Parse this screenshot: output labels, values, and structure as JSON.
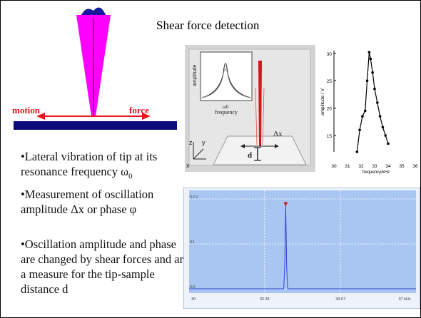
{
  "slide": {
    "title": "Shear force detection",
    "bullets": [
      {
        "pre": "•Lateral vibration of tip at its resonance frequency ω",
        "sub": "0"
      },
      {
        "pre": "•Measurement of oscillation amplitude Δx or phase φ",
        "sub": ""
      },
      {
        "pre": "•Oscillation amplitude and  phase are changed  by shear forces and are a measure for the tip-sample distance d",
        "sub": ""
      }
    ]
  },
  "tip_diagram": {
    "motion_label": "motion",
    "force_label": "force",
    "colors": {
      "tip": "#ff00ff",
      "tip_top": "#1a1aa0",
      "arrow": "#e8141e",
      "substrate": "#0a0a78"
    }
  },
  "schematic": {
    "inset_ylabel": "amplitude",
    "inset_xlabel_top": "ω0",
    "inset_xlabel": "frequency",
    "dx_label": "Δx",
    "d_label": "d",
    "axis_x": "x",
    "axis_y": "y",
    "axis_z": "z"
  },
  "chart_data": [
    {
      "type": "line",
      "xlabel": "frequency/kHz",
      "ylabel": "amplitude / V",
      "xlim": [
        30,
        36
      ],
      "ylim": [
        12,
        30.5
      ],
      "x_ticks": [
        "30",
        "31",
        "32",
        "33",
        "34",
        "35",
        "36"
      ],
      "y_ticks": [
        "30",
        "25",
        "20",
        "15"
      ],
      "series": [
        {
          "x": [
            31.7,
            31.9,
            32.1,
            32.3,
            32.45,
            32.6,
            32.7,
            32.85,
            33.0,
            33.2,
            33.4,
            33.6,
            33.8,
            34.0
          ],
          "y": [
            12.0,
            16.0,
            18.5,
            19.5,
            25.0,
            30.2,
            29.0,
            26.5,
            23.5,
            21.0,
            18.5,
            16.5,
            15.0,
            13.5
          ]
        }
      ]
    },
    {
      "type": "line",
      "x_ticks": [
        "30",
        "32.33",
        "34.67",
        "37 kHz"
      ],
      "y_ticks": [
        "0.2 V",
        "0.1",
        "0.0"
      ],
      "xlim": [
        30,
        37
      ],
      "ylim": [
        0,
        0.2
      ],
      "colors": {
        "background": "#a9c6f2",
        "line": "#3344cc",
        "marker": "#cc1a1a"
      },
      "series": [
        {
          "x": [
            30,
            32.92,
            32.95,
            32.98,
            33.01,
            33.04,
            37
          ],
          "y": [
            0.0,
            0.0,
            0.05,
            0.185,
            0.05,
            0.0,
            0.0
          ]
        }
      ]
    }
  ]
}
